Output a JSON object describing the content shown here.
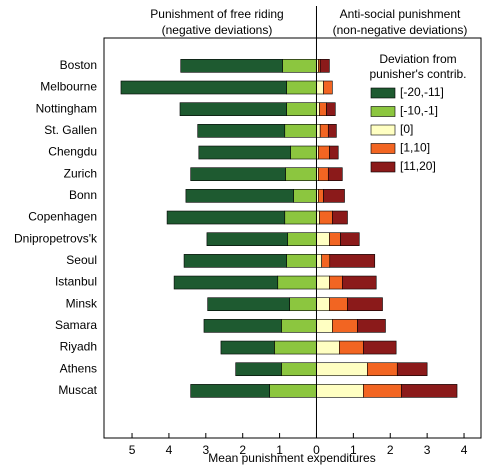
{
  "chart_data": {
    "type": "bar",
    "left_header": [
      "Punishment of free riding",
      "(negative deviations)"
    ],
    "right_header": [
      "Anti-social punishment",
      "(non-negative deviations)"
    ],
    "legend_title": [
      "Deviation from",
      "punisher's contrib."
    ],
    "xlabel": "Mean punishment expenditures",
    "categories": [
      "Boston",
      "Melbourne",
      "Nottingham",
      "St. Gallen",
      "Chengdu",
      "Zurich",
      "Bonn",
      "Copenhagen",
      "Dnipropetrovs'k",
      "Seoul",
      "Istanbul",
      "Minsk",
      "Samara",
      "Riyadh",
      "Athens",
      "Muscat"
    ],
    "series": [
      {
        "name": "[-20,-11]",
        "color": "#1e5a30",
        "values": [
          -2.76,
          -4.49,
          -2.89,
          -2.36,
          -2.49,
          -2.57,
          -2.92,
          -3.19,
          -2.19,
          -2.78,
          -2.81,
          -2.22,
          -2.1,
          -1.45,
          -1.24,
          -2.14
        ]
      },
      {
        "name": "[-10,-1]",
        "color": "#8cc63f",
        "values": [
          -0.92,
          -0.81,
          -0.81,
          -0.86,
          -0.7,
          -0.84,
          -0.62,
          -0.86,
          -0.78,
          -0.81,
          -1.05,
          -0.73,
          -0.95,
          -1.14,
          -0.95,
          -1.27
        ]
      },
      {
        "name": "[0]",
        "color": "#ffffc2",
        "values": [
          0.05,
          0.19,
          0.08,
          0.1,
          0.05,
          0.05,
          0.05,
          0.08,
          0.35,
          0.14,
          0.35,
          0.35,
          0.43,
          0.62,
          1.38,
          1.27
        ]
      },
      {
        "name": "[1,10]",
        "color": "#f26522",
        "values": [
          0.05,
          0.24,
          0.19,
          0.22,
          0.3,
          0.27,
          0.14,
          0.35,
          0.3,
          0.22,
          0.35,
          0.49,
          0.68,
          0.65,
          0.81,
          1.03
        ]
      },
      {
        "name": "[11,20]",
        "color": "#8b1a1a",
        "values": [
          0.25,
          0,
          0.24,
          0.22,
          0.24,
          0.38,
          0.57,
          0.41,
          0.51,
          1.22,
          0.92,
          0.95,
          0.76,
          0.89,
          0.81,
          1.51
        ]
      }
    ],
    "xlim": [
      -5.76,
      4.46
    ],
    "xticks": [
      {
        "value": -5,
        "label": "5"
      },
      {
        "value": -4,
        "label": "4"
      },
      {
        "value": -3,
        "label": "3"
      },
      {
        "value": -2,
        "label": "2"
      },
      {
        "value": -1,
        "label": "1"
      },
      0,
      1,
      2,
      3,
      4
    ]
  }
}
